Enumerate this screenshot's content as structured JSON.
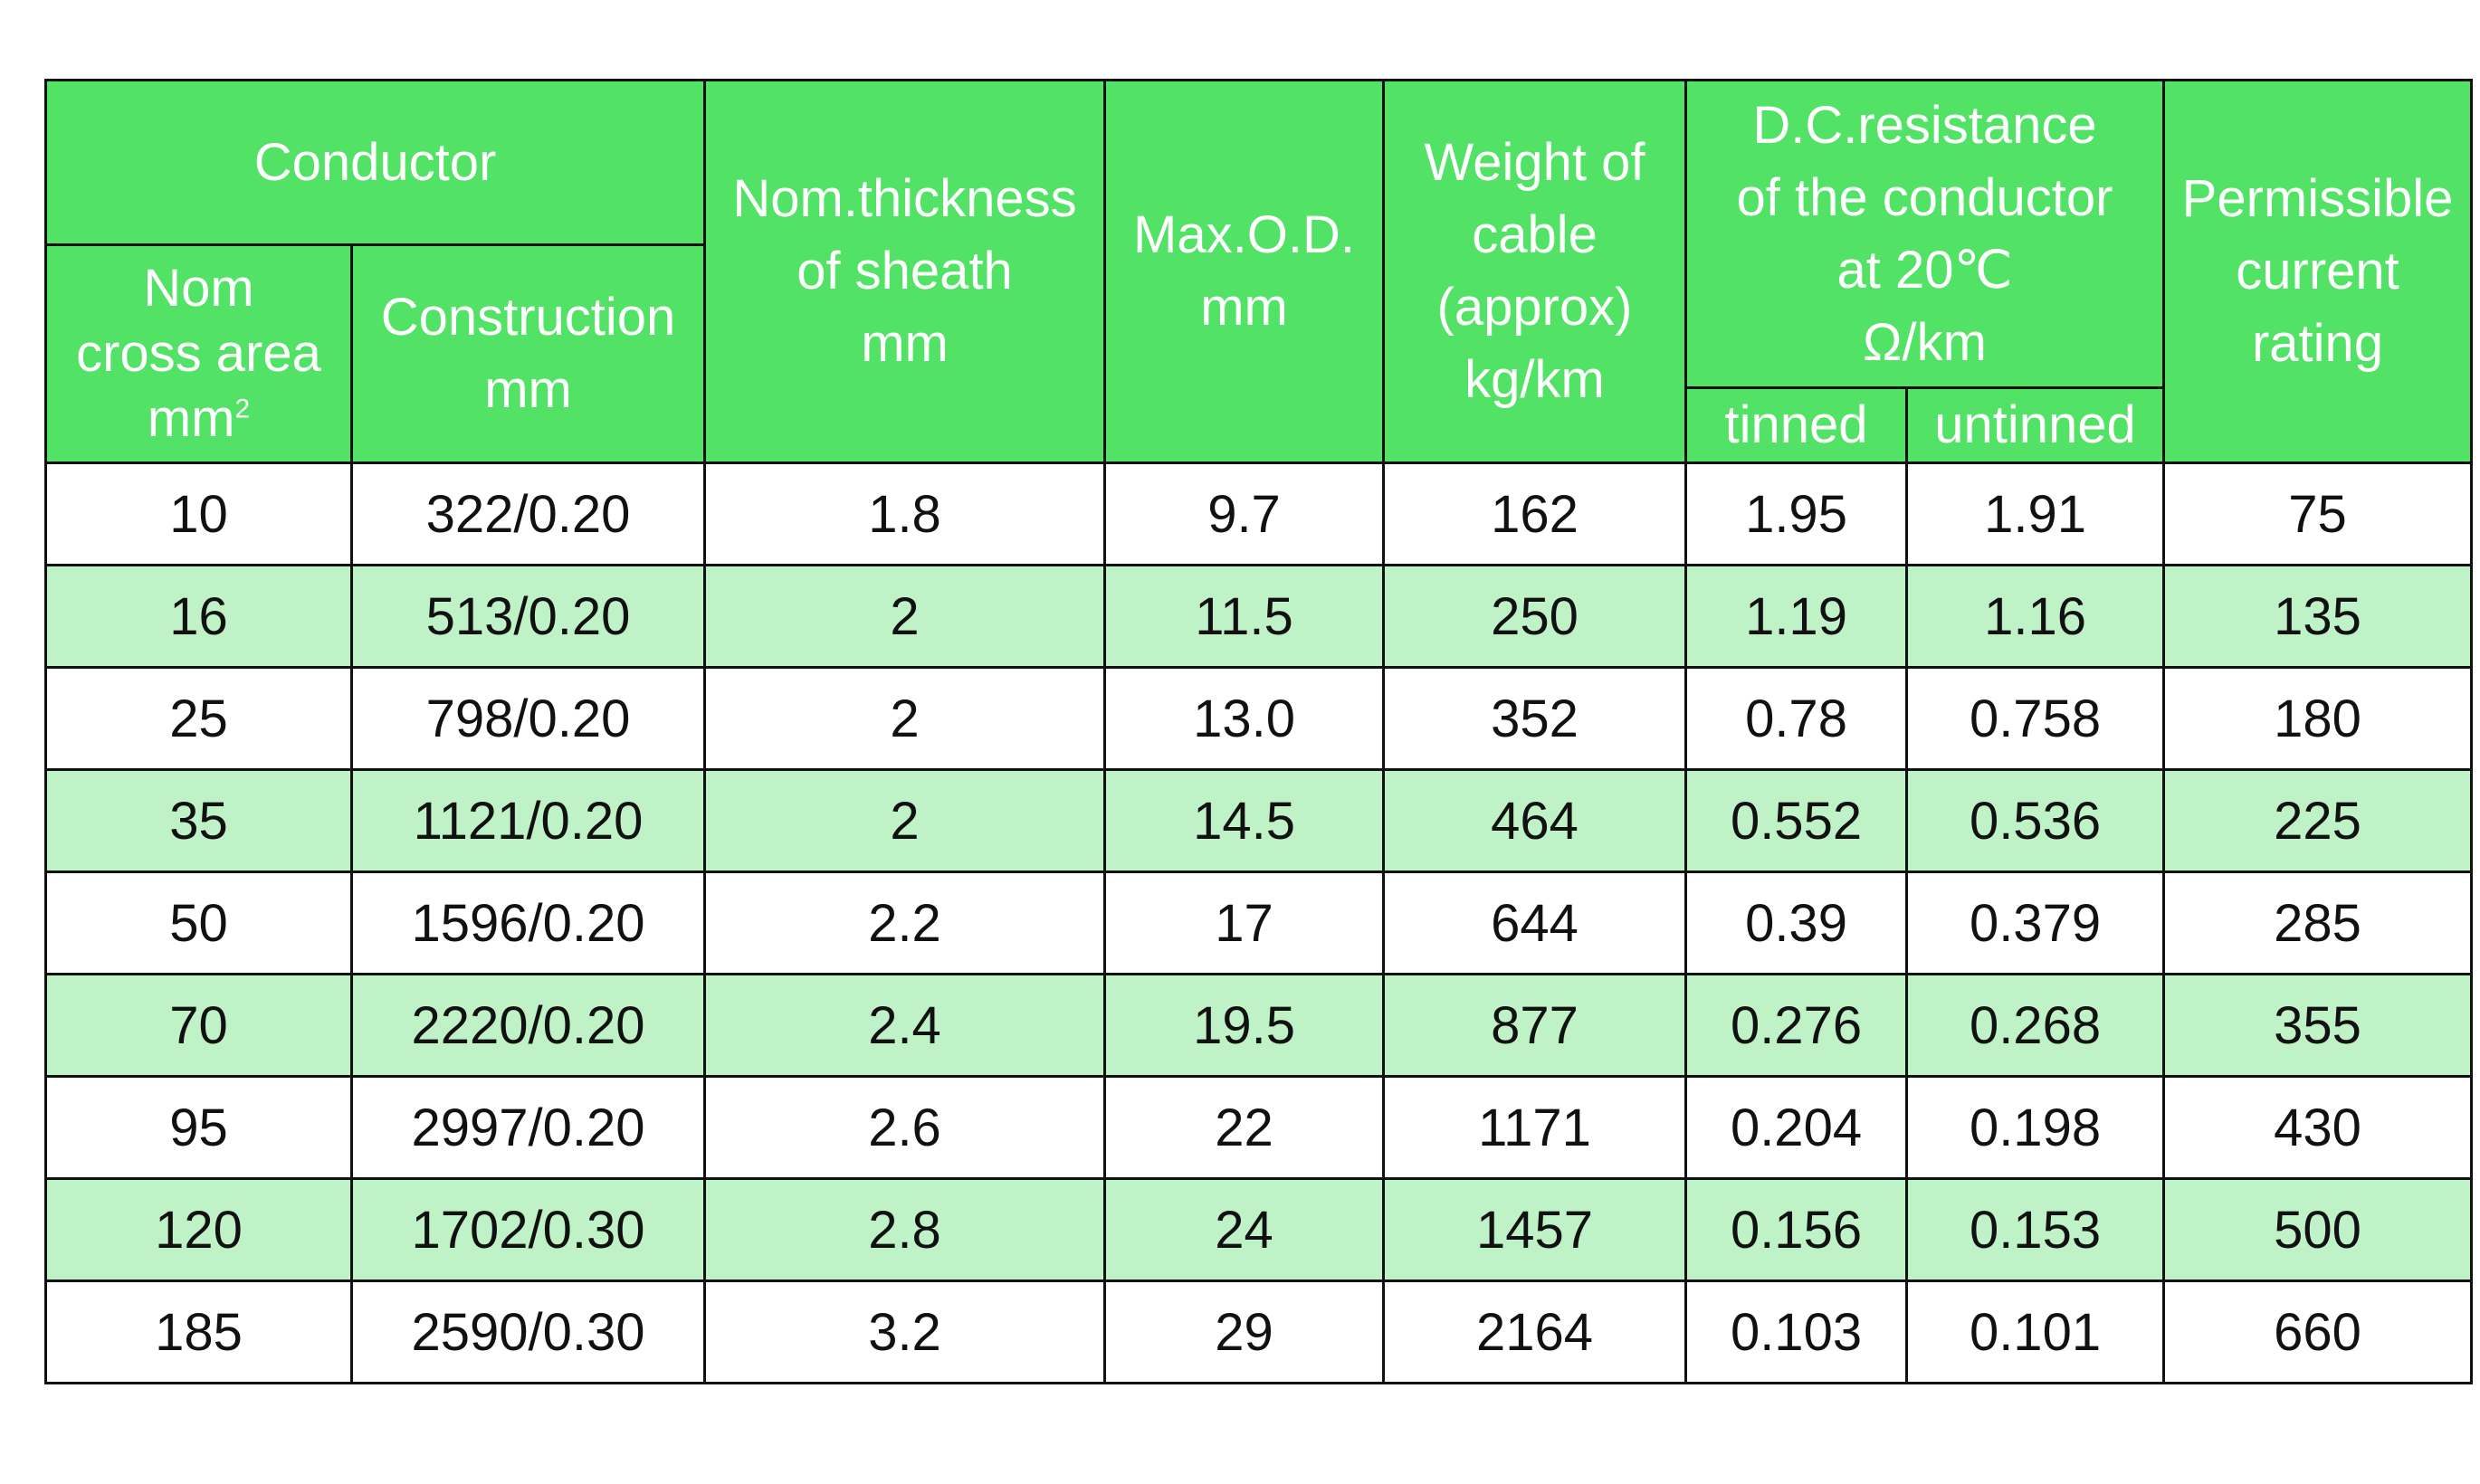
{
  "headers": {
    "conductor": "Conductor",
    "nom_cross_area": [
      "Nom",
      "cross area",
      "mm"
    ],
    "nom_cross_area_sup": "2",
    "construction": [
      "Construction",
      "mm"
    ],
    "sheath": [
      "Nom.thickness",
      "of sheath",
      "mm"
    ],
    "max_od": [
      "Max.O.D.",
      "mm"
    ],
    "weight": [
      "Weight of",
      "cable",
      "(approx)",
      "kg/km"
    ],
    "resistance": [
      "D.C.resistance",
      "of the conductor",
      "at 20℃",
      "Ω/km"
    ],
    "tinned": "tinned",
    "untinned": "untinned",
    "current": [
      "Permissible",
      "current",
      "rating"
    ]
  },
  "rows": [
    [
      "10",
      "322/0.20",
      "1.8",
      "9.7",
      "162",
      "1.95",
      "1.91",
      "75"
    ],
    [
      "16",
      "513/0.20",
      "2",
      "11.5",
      "250",
      "1.19",
      "1.16",
      "135"
    ],
    [
      "25",
      "798/0.20",
      "2",
      "13.0",
      "352",
      "0.78",
      "0.758",
      "180"
    ],
    [
      "35",
      "1121/0.20",
      "2",
      "14.5",
      "464",
      "0.552",
      "0.536",
      "225"
    ],
    [
      "50",
      "1596/0.20",
      "2.2",
      "17",
      "644",
      "0.39",
      "0.379",
      "285"
    ],
    [
      "70",
      "2220/0.20",
      "2.4",
      "19.5",
      "877",
      "0.276",
      "0.268",
      "355"
    ],
    [
      "95",
      "2997/0.20",
      "2.6",
      "22",
      "1171",
      "0.204",
      "0.198",
      "430"
    ],
    [
      "120",
      "1702/0.30",
      "2.8",
      "24",
      "1457",
      "0.156",
      "0.153",
      "500"
    ],
    [
      "185",
      "2590/0.30",
      "3.2",
      "29",
      "2164",
      "0.103",
      "0.101",
      "660"
    ]
  ],
  "colors": {
    "header": "#52e266",
    "row_alt": "#bff2c6",
    "row_base": "#ffffff",
    "border": "#111111"
  }
}
